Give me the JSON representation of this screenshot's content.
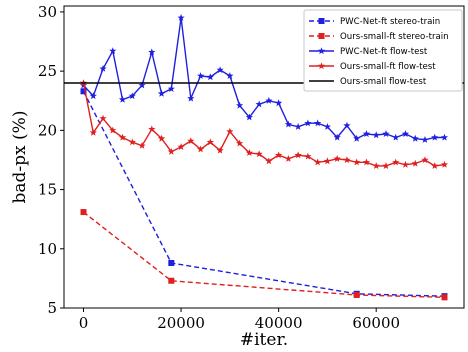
{
  "chart_data": {
    "type": "line",
    "title": "",
    "xlabel": "#iter.",
    "ylabel": "bad-px (%)",
    "xlim": [
      -4000,
      78000
    ],
    "ylim": [
      5,
      30.5
    ],
    "xticks": [
      0,
      20000,
      40000,
      60000
    ],
    "yticks": [
      5,
      10,
      15,
      20,
      25,
      30
    ],
    "grid": false,
    "legend_position": "top-right",
    "series": [
      {
        "name": "PWC-Net-ft stereo-train",
        "color": "#1f1fe0",
        "style": "dashed",
        "marker": "square",
        "points": [
          [
            0,
            23.3
          ],
          [
            18000,
            8.8
          ],
          [
            56000,
            6.2
          ],
          [
            74000,
            6.0
          ]
        ]
      },
      {
        "name": "Ours-small-ft stereo-train",
        "color": "#e01f1f",
        "style": "dashed",
        "marker": "square",
        "points": [
          [
            0,
            13.1
          ],
          [
            18000,
            7.3
          ],
          [
            56000,
            6.1
          ],
          [
            74000,
            5.9
          ]
        ]
      },
      {
        "name": "PWC-Net-ft flow-test",
        "color": "#1f1fe0",
        "style": "solid",
        "marker": "star",
        "points": [
          [
            0,
            23.8
          ],
          [
            2000,
            22.9
          ],
          [
            4000,
            25.2
          ],
          [
            6000,
            26.7
          ],
          [
            8000,
            22.6
          ],
          [
            10000,
            22.9
          ],
          [
            12000,
            23.8
          ],
          [
            14000,
            26.6
          ],
          [
            16000,
            23.1
          ],
          [
            18000,
            23.5
          ],
          [
            20000,
            29.5
          ],
          [
            22000,
            22.7
          ],
          [
            24000,
            24.6
          ],
          [
            26000,
            24.5
          ],
          [
            28000,
            25.1
          ],
          [
            30000,
            24.6
          ],
          [
            32000,
            22.1
          ],
          [
            34000,
            21.1
          ],
          [
            36000,
            22.2
          ],
          [
            38000,
            22.5
          ],
          [
            40000,
            22.3
          ],
          [
            42000,
            20.5
          ],
          [
            44000,
            20.3
          ],
          [
            46000,
            20.6
          ],
          [
            48000,
            20.6
          ],
          [
            50000,
            20.3
          ],
          [
            52000,
            19.4
          ],
          [
            54000,
            20.4
          ],
          [
            56000,
            19.3
          ],
          [
            58000,
            19.7
          ],
          [
            60000,
            19.6
          ],
          [
            62000,
            19.7
          ],
          [
            64000,
            19.4
          ],
          [
            66000,
            19.7
          ],
          [
            68000,
            19.3
          ],
          [
            70000,
            19.2
          ],
          [
            72000,
            19.4
          ],
          [
            74000,
            19.4
          ]
        ]
      },
      {
        "name": "Ours-small-ft flow-test",
        "color": "#e01f1f",
        "style": "solid",
        "marker": "star",
        "points": [
          [
            0,
            24.0
          ],
          [
            2000,
            19.8
          ],
          [
            4000,
            21.0
          ],
          [
            6000,
            20.0
          ],
          [
            8000,
            19.4
          ],
          [
            10000,
            19.0
          ],
          [
            12000,
            18.7
          ],
          [
            14000,
            20.1
          ],
          [
            16000,
            19.3
          ],
          [
            18000,
            18.2
          ],
          [
            20000,
            18.6
          ],
          [
            22000,
            19.1
          ],
          [
            24000,
            18.4
          ],
          [
            26000,
            19.0
          ],
          [
            28000,
            18.3
          ],
          [
            30000,
            19.9
          ],
          [
            32000,
            18.9
          ],
          [
            34000,
            18.1
          ],
          [
            36000,
            18.0
          ],
          [
            38000,
            17.4
          ],
          [
            40000,
            17.9
          ],
          [
            42000,
            17.6
          ],
          [
            44000,
            17.9
          ],
          [
            46000,
            17.8
          ],
          [
            48000,
            17.3
          ],
          [
            50000,
            17.4
          ],
          [
            52000,
            17.6
          ],
          [
            54000,
            17.5
          ],
          [
            56000,
            17.3
          ],
          [
            58000,
            17.3
          ],
          [
            60000,
            17.0
          ],
          [
            62000,
            17.0
          ],
          [
            64000,
            17.3
          ],
          [
            66000,
            17.1
          ],
          [
            68000,
            17.2
          ],
          [
            70000,
            17.5
          ],
          [
            72000,
            17.0
          ],
          [
            74000,
            17.1
          ]
        ]
      },
      {
        "name": "Ours-small flow-test",
        "color": "#000000",
        "style": "solid",
        "marker": "none",
        "constant": 24.0
      }
    ]
  }
}
